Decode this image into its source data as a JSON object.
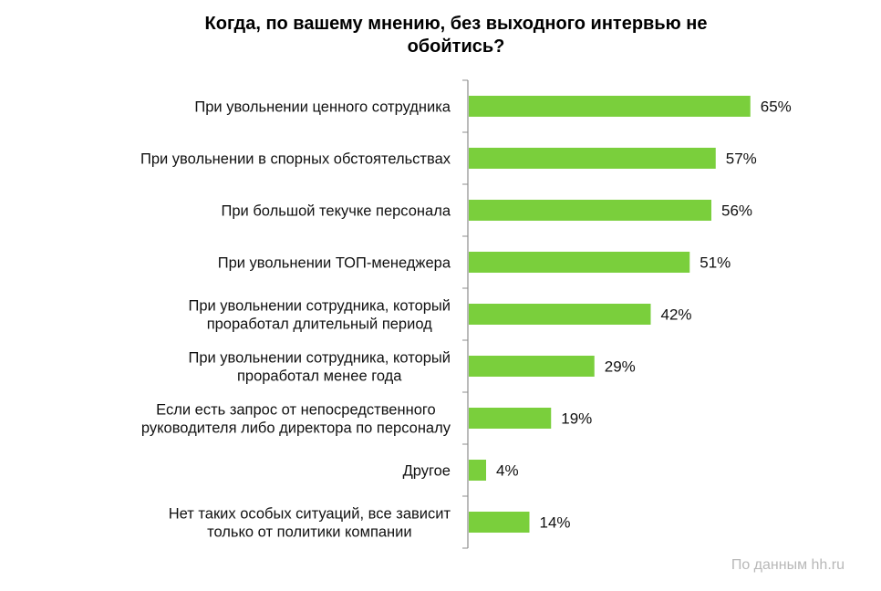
{
  "chart_data": {
    "type": "bar",
    "orientation": "horizontal",
    "title": "Когда, по вашему мнению, без выходного интервью не обойтись?",
    "title_lines": [
      "Когда, по вашему мнению, без выходного интервью не",
      "обойтись?"
    ],
    "categories": [
      [
        "При увольнении ценного сотрудника"
      ],
      [
        "При увольнении в спорных обстоятельствах"
      ],
      [
        "При большой текучке персонала"
      ],
      [
        "При увольнении ТОП-менеджера"
      ],
      [
        "При увольнении сотрудника, который",
        "проработал длительный период"
      ],
      [
        "При увольнении сотрудника, который",
        "проработал менее года"
      ],
      [
        "Если есть запрос от непосредственного",
        "руководителя либо директора по персоналу"
      ],
      [
        "Другое"
      ],
      [
        "Нет таких особых ситуаций, все зависит",
        "только от политики компании"
      ]
    ],
    "values": [
      65,
      57,
      56,
      51,
      42,
      29,
      19,
      4,
      14
    ],
    "value_labels": [
      "65%",
      "57%",
      "56%",
      "51%",
      "42%",
      "29%",
      "19%",
      "4%",
      "14%"
    ],
    "unit": "%",
    "xlabel": "",
    "ylabel": "",
    "xlim": [
      0,
      100
    ],
    "grid": false,
    "legend": "none",
    "bar_color": "#7acf3c",
    "axis_color": "#8c8c8c"
  },
  "source_note": "По данным hh.ru"
}
